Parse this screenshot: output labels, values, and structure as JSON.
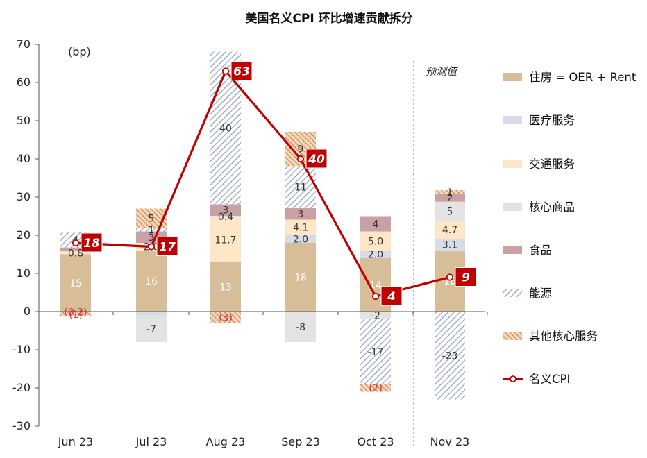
{
  "colors": {
    "housing": "#D7BD98",
    "medical": "#D7DDE8",
    "transport": "#FDE7C6",
    "core_goods": "#E3E3E3",
    "food": "#C9A0A4",
    "energy_stripe": "#94A2C2",
    "other_stripe": "#C9864A",
    "cpi_line": "#C00000",
    "neg_label": "#E03030"
  },
  "chart_data": {
    "type": "bar",
    "title": "美国名义CPI 环比增速贡献拆分",
    "unit_label": "(bp)",
    "forecast_label": "预测值",
    "categories": [
      "Jun 23",
      "Jul 23",
      "Aug 23",
      "Sep 23",
      "Oct 23",
      "Nov 23"
    ],
    "ylim": [
      -30,
      70
    ],
    "yticks": [
      "70",
      "60",
      "50",
      "40",
      "30",
      "20",
      "10",
      "0",
      "-10",
      "-20",
      "-30"
    ],
    "legend_position": "right",
    "series": [
      {
        "name": "住房 = OER + Rent",
        "key": "housing",
        "style": "solid",
        "values": [
          15,
          16,
          13,
          18,
          14,
          16
        ],
        "labels": [
          "15",
          "16",
          "13",
          "18",
          "14",
          "16"
        ]
      },
      {
        "name": "医疗服务",
        "key": "medical",
        "style": "solid",
        "values": [
          0,
          -1,
          0,
          2.0,
          2.0,
          3.1
        ],
        "labels": [
          "",
          "",
          "",
          "2.0",
          "2.0",
          "3.1"
        ]
      },
      {
        "name": "交通服务",
        "key": "transport",
        "style": "solid",
        "values": [
          0.8,
          2.0,
          11.7,
          4.1,
          5.0,
          4.7
        ],
        "labels": [
          "0.8",
          "2.0",
          "11.7",
          "4.1",
          "5.0",
          "4.7"
        ]
      },
      {
        "name": "核心商品",
        "key": "core_goods",
        "style": "solid",
        "values": [
          -0.2,
          -7,
          0.4,
          -8,
          -2,
          5
        ],
        "labels": [
          "(0.2)",
          "-7",
          "0.4",
          "-8",
          "-2",
          "5"
        ]
      },
      {
        "name": "食品",
        "key": "food",
        "style": "solid",
        "values": [
          1,
          3,
          3,
          3,
          4,
          2
        ],
        "labels": [
          "",
          "3",
          "3",
          "3",
          "4",
          "2"
        ]
      },
      {
        "name": "能源",
        "key": "energy",
        "style": "hatch-blue",
        "values": [
          4,
          1,
          40,
          11,
          -17,
          -23
        ],
        "labels": [
          "4",
          "1",
          "40",
          "11",
          "-17",
          "-23"
        ]
      },
      {
        "name": "其他核心服务",
        "key": "other",
        "style": "hatch-orange",
        "values": [
          -1,
          5,
          -3,
          9,
          -2,
          1
        ],
        "labels": [
          "(1)",
          "5",
          "(3)",
          "9",
          "(2)",
          "1"
        ]
      }
    ],
    "cpi": {
      "name": "名义CPI",
      "values": [
        18,
        17,
        63,
        40,
        4,
        9
      ],
      "labels": [
        "18",
        "17",
        "63",
        "40",
        "4",
        "9"
      ]
    }
  }
}
